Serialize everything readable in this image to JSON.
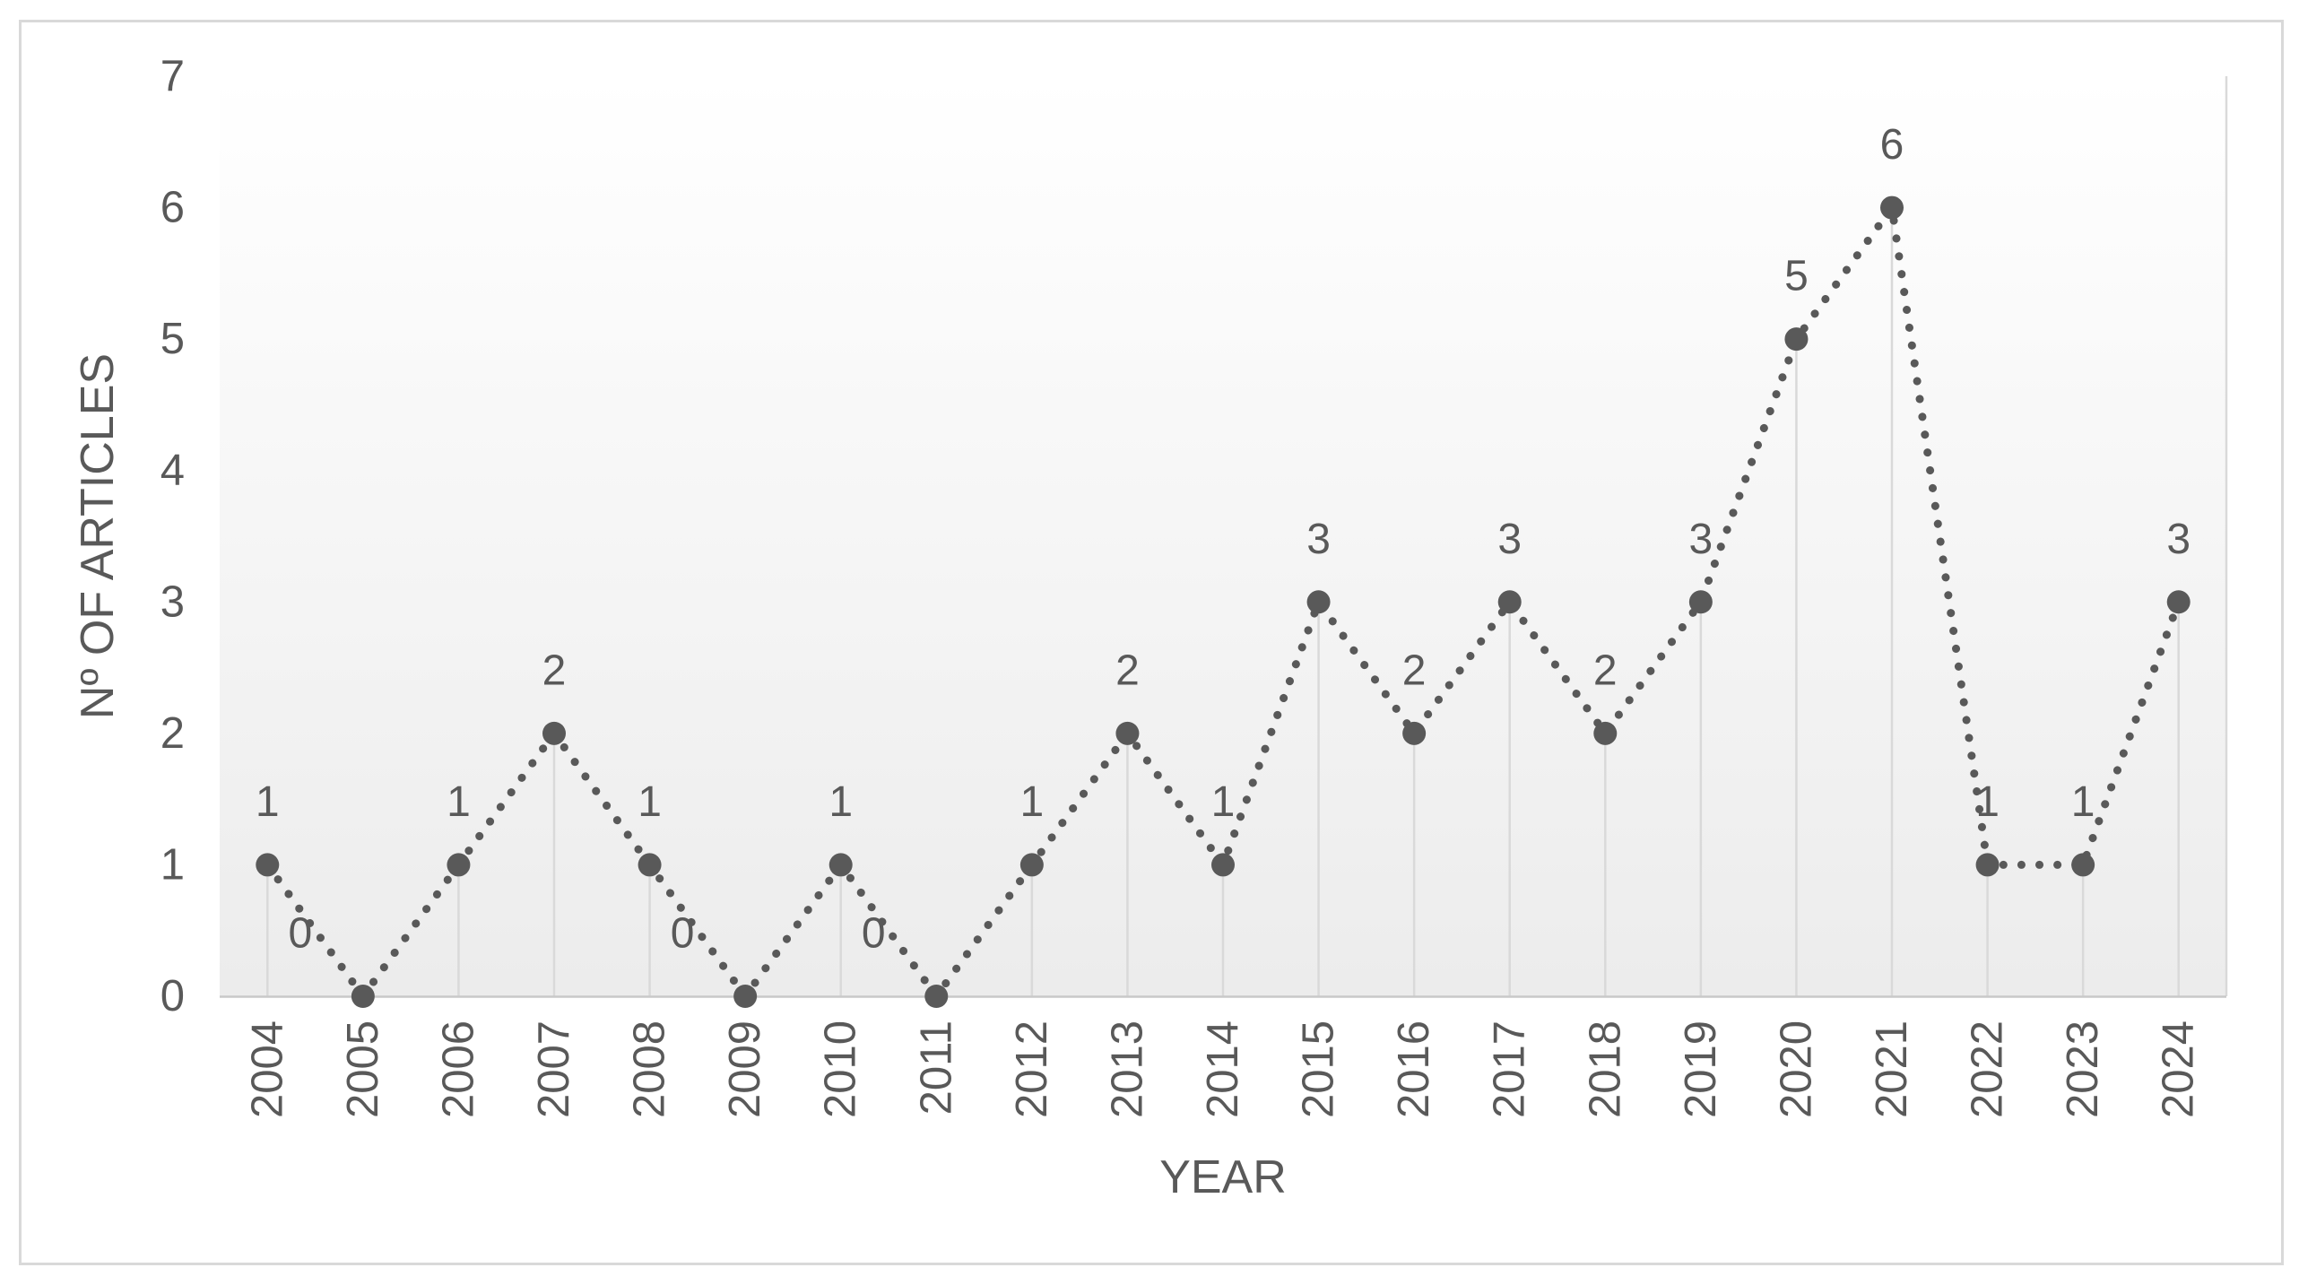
{
  "chart_data": {
    "type": "line",
    "line_style": "dotted",
    "marker": "filled-circle",
    "title": "",
    "xlabel": "YEAR",
    "ylabel": "Nº OF ARTICLES",
    "categories": [
      "2004",
      "2005",
      "2006",
      "2007",
      "2008",
      "2009",
      "2010",
      "2011",
      "2012",
      "2013",
      "2014",
      "2015",
      "2016",
      "2017",
      "2018",
      "2019",
      "2020",
      "2021",
      "2022",
      "2023",
      "2024"
    ],
    "values": [
      1,
      0,
      1,
      2,
      1,
      0,
      1,
      0,
      1,
      2,
      1,
      3,
      2,
      3,
      2,
      3,
      5,
      6,
      1,
      1,
      3
    ],
    "yticks": [
      0,
      1,
      2,
      3,
      4,
      5,
      6,
      7
    ],
    "ylim": [
      0,
      7
    ],
    "data_labels": true,
    "legend": "none",
    "grid": "drop-lines",
    "colors": {
      "series": "#595959",
      "text": "#595959",
      "drop_line": "#d9d9d9",
      "axis_line": "#c9c9c9",
      "plot_bg_top": "#ffffff",
      "plot_bg_bottom": "#ececec",
      "frame_border": "#d9d9d9",
      "frame_fill": "#ffffff"
    }
  }
}
